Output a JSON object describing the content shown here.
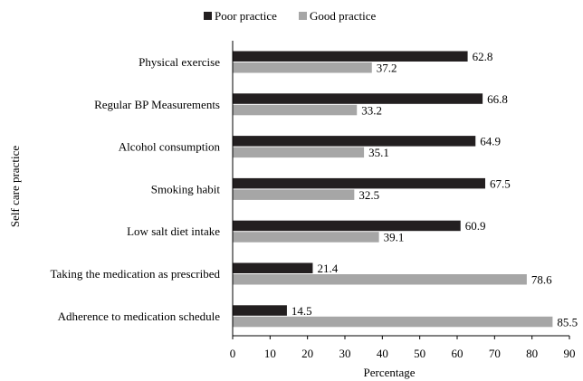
{
  "chart_data": {
    "type": "bar",
    "orientation": "horizontal",
    "categories": [
      "Physical exercise",
      "Regular BP Measurements",
      "Alcohol consumption",
      "Smoking habit",
      "Low salt diet intake",
      "Taking the medication as prescribed",
      "Adherence to medication schedule"
    ],
    "series": [
      {
        "name": "Poor practice",
        "color": "#231f20",
        "values": [
          62.8,
          66.8,
          64.9,
          67.5,
          60.9,
          21.4,
          14.5
        ]
      },
      {
        "name": "Good practice",
        "color": "#a6a6a6",
        "values": [
          37.2,
          33.2,
          35.1,
          32.5,
          39.1,
          78.6,
          85.5
        ]
      }
    ],
    "data_labels": [
      [
        "62.8",
        "66.8",
        "64.9",
        "67.5",
        "60.9",
        "21.4",
        "14.5"
      ],
      [
        "37.2",
        "33.2",
        "35.1",
        "32.5",
        "39.1",
        "78.6",
        "85.5"
      ]
    ],
    "xlabel": "Percentage",
    "ylabel": "Self care practice",
    "xlim": [
      0,
      90
    ],
    "xticks": [
      0,
      10,
      20,
      30,
      40,
      50,
      60,
      70,
      80,
      90
    ],
    "xtick_labels": [
      "0",
      "10",
      "20",
      "30",
      "40",
      "50",
      "60",
      "70",
      "80",
      "90"
    ],
    "grid": false,
    "legend_position": "top-center"
  }
}
